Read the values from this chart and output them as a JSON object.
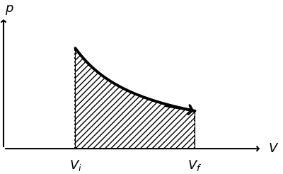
{
  "background_color": "#ffffff",
  "Vi": 1.5,
  "Vf": 4.0,
  "curve_constant": 6.0,
  "x_axis_label": "V",
  "y_axis_label": "p",
  "xlim": [
    0,
    5.8
  ],
  "ylim": [
    0,
    5.5
  ],
  "curve_color": "#000000",
  "curve_linewidth": 2.8,
  "hatch_pattern": "////",
  "hatch_color": "#000000",
  "fill_facecolor": "white",
  "dotted_color": "#000000",
  "arrow_color": "#000000",
  "label_fontsize": 13,
  "axis_lw": 1.5,
  "axis_arrow_hw": 0.22,
  "axis_arrow_hl": 0.18
}
